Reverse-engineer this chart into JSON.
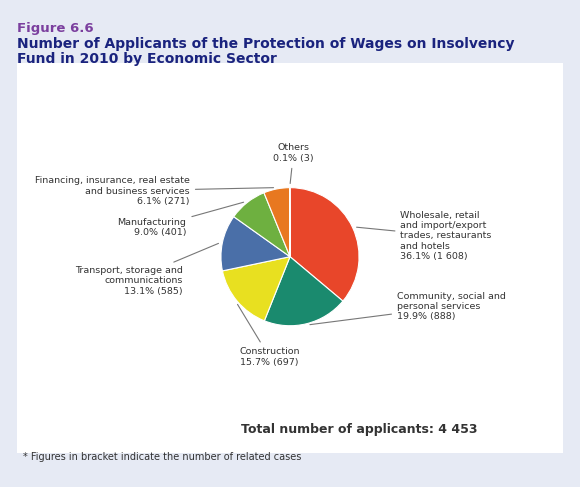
{
  "figure_label": "Figure 6.6",
  "title_line1": "Number of Applicants of the Protection of Wages on Insolvency",
  "title_line2": "Fund in 2010 by Economic Sector",
  "footnote": "* Figures in bracket indicate the number of related cases",
  "total_label": "Total number of applicants: 4 453",
  "sectors": [
    "Wholesale, retail\nand import/export\ntrades, restaurants\nand hotels",
    "Community, social and\npersonal services",
    "Construction",
    "Transport, storage and\ncommunications",
    "Manufacturing",
    "Financing, insurance, real estate\nand business services",
    "Others"
  ],
  "pct_count_labels": [
    "36.1% (1 608)",
    "19.9% (888)",
    "15.7% (697)",
    "13.1% (585)",
    "9.0% (401)",
    "6.1% (271)",
    "0.1% (3)"
  ],
  "values": [
    1608,
    888,
    697,
    585,
    401,
    271,
    3
  ],
  "colors": [
    "#E8462A",
    "#1A8A6E",
    "#E8E020",
    "#4A6FA8",
    "#6EB040",
    "#E87820",
    "#6ECFE0"
  ],
  "bg_color": "#E6EAF4",
  "white_bg": "#FFFFFF",
  "fig_label_color": "#7B3F9E",
  "title_color": "#1A237E",
  "text_color": "#333333"
}
